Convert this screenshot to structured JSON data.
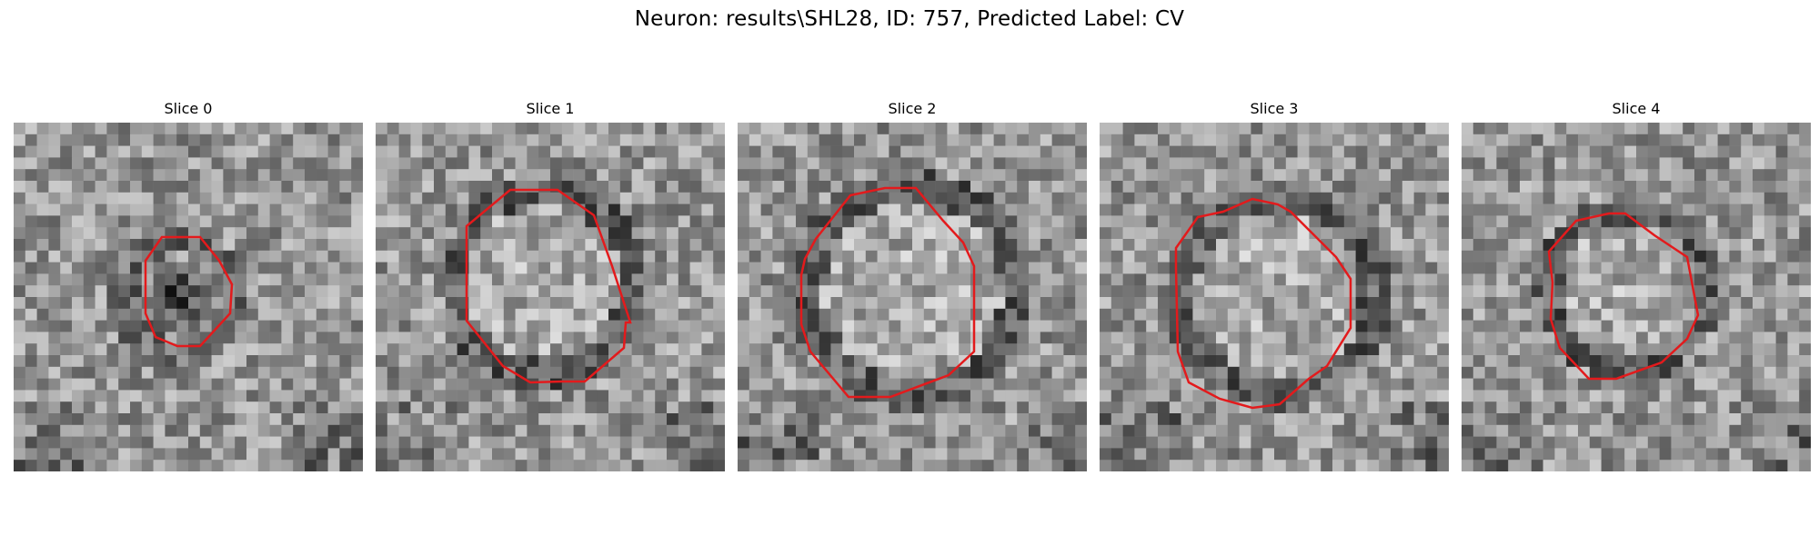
{
  "figure": {
    "title": "Neuron: results\\SHL28, ID: 757, Predicted Label: CV",
    "contour_color": "#e31a1c"
  },
  "panels": [
    {
      "title": "Slice 0",
      "contour_style": "dark-center"
    },
    {
      "title": "Slice 1",
      "contour_style": "bright-center"
    },
    {
      "title": "Slice 2",
      "contour_style": "bright-center"
    },
    {
      "title": "Slice 3",
      "contour_style": "bright-center"
    },
    {
      "title": "Slice 4",
      "contour_style": "bright-center"
    }
  ]
}
